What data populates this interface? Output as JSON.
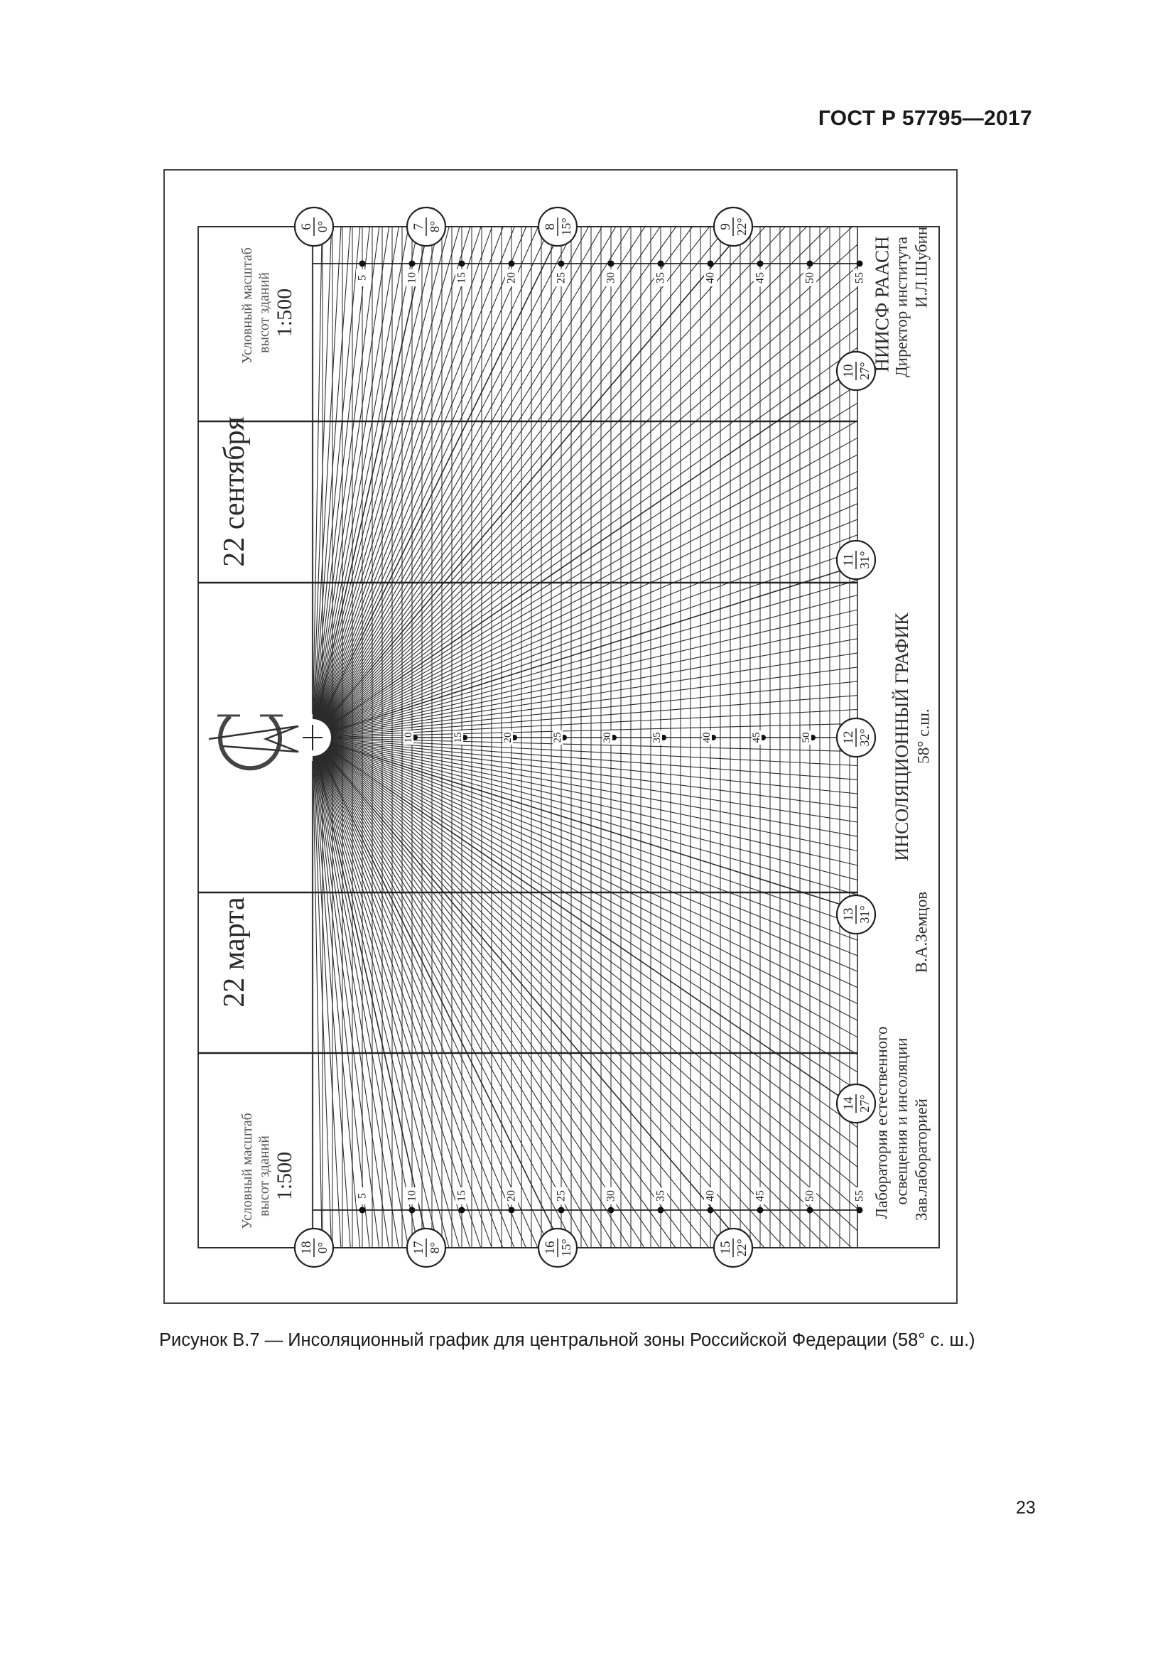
{
  "header": {
    "doc_number": "ГОСТ Р 57795—2017"
  },
  "caption": "Рисунок В.7 — Инсоляционный график для центральной зоны Российской Федерации (58° с. ш.)",
  "page_number": "23",
  "diagram": {
    "date_top": "22 сентября",
    "date_bottom": "22 марта",
    "scale_top": {
      "line1": "Условный масштаб",
      "line2": "высот зданий",
      "ratio": "1:500"
    },
    "scale_bottom": {
      "line1": "Условный масштаб",
      "line2": "высот зданий",
      "ratio": "1:500"
    },
    "title": "ИНСОЛЯЦИОННЫЙ ГРАФИК",
    "latitude": "58° с.ш.",
    "latitude_deg": 58,
    "institute": {
      "name": "НИИСФ РААСН",
      "role": "Директор института",
      "person": "И.Л.Шубин"
    },
    "laboratory": {
      "line1": "Лаборатория естественного",
      "line2": "освещения и инсоляции",
      "role": "Зав.лабораторией",
      "person": "В.А.Земцов"
    },
    "distance_ticks": [
      "5",
      "10",
      "15",
      "20",
      "25",
      "30",
      "35",
      "40",
      "45",
      "50",
      "55"
    ],
    "middle_ticks": [
      "10",
      "15",
      "20",
      "25",
      "30",
      "35",
      "40",
      "45",
      "50"
    ],
    "hour_markers_top": [
      {
        "hour": "6",
        "altitude": "0°"
      },
      {
        "hour": "7",
        "altitude": "8°"
      },
      {
        "hour": "8",
        "altitude": "15°"
      },
      {
        "hour": "9",
        "altitude": "22°"
      }
    ],
    "hour_markers_right": [
      {
        "hour": "10",
        "altitude": "27°"
      },
      {
        "hour": "11",
        "altitude": "31°"
      },
      {
        "hour": "12",
        "altitude": "32°"
      },
      {
        "hour": "13",
        "altitude": "31°"
      },
      {
        "hour": "14",
        "altitude": "27°"
      }
    ],
    "hour_markers_bottom": [
      {
        "hour": "18",
        "altitude": "0°"
      },
      {
        "hour": "17",
        "altitude": "8°"
      },
      {
        "hour": "16",
        "altitude": "15°"
      },
      {
        "hour": "15",
        "altitude": "22°"
      }
    ],
    "logo": "НИИСФ emblem",
    "line_color": "#2b2b2b"
  }
}
